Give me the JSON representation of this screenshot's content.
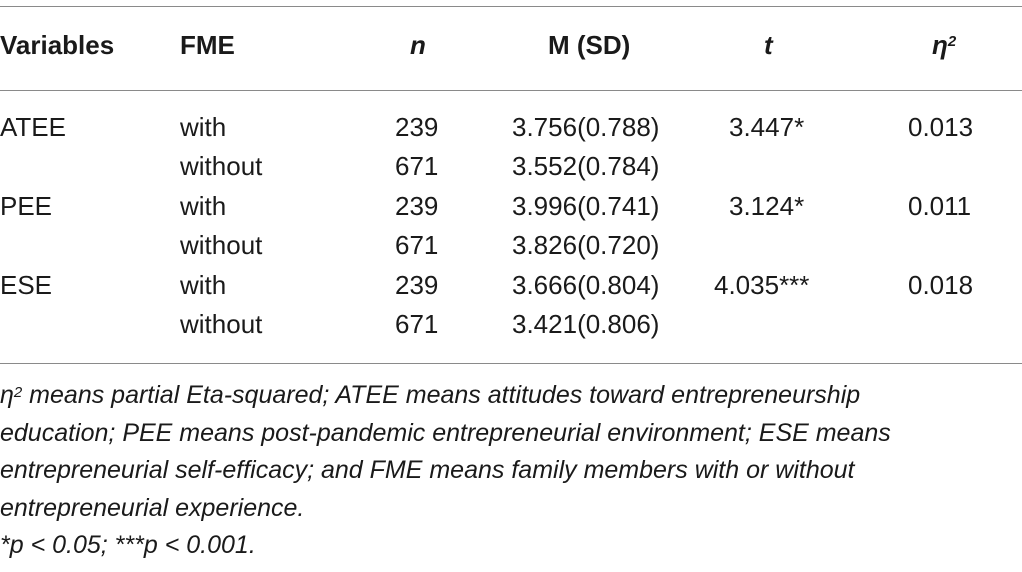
{
  "table": {
    "headers": {
      "variables": "Variables",
      "fme": "FME",
      "n": "n",
      "msd": "M (SD)",
      "t": "t",
      "eta_symbol": "η",
      "eta_sup": "2"
    },
    "rows": [
      {
        "variable": "ATEE",
        "fme": "with",
        "n": "239",
        "msd": "3.756(0.788)",
        "t": "3.447*",
        "eta": "0.013"
      },
      {
        "variable": "",
        "fme": "without",
        "n": "671",
        "msd": "3.552(0.784)",
        "t": "",
        "eta": ""
      },
      {
        "variable": "PEE",
        "fme": "with",
        "n": "239",
        "msd": "3.996(0.741)",
        "t": "3.124*",
        "eta": "0.011"
      },
      {
        "variable": "",
        "fme": "without",
        "n": "671",
        "msd": "3.826(0.720)",
        "t": "",
        "eta": ""
      },
      {
        "variable": "ESE",
        "fme": "with",
        "n": "239",
        "msd": "3.666(0.804)",
        "t": "4.035***",
        "eta": "0.018"
      },
      {
        "variable": "",
        "fme": "without",
        "n": "671",
        "msd": "3.421(0.806)",
        "t": "",
        "eta": ""
      }
    ]
  },
  "notes": {
    "eta_symbol": "η",
    "eta_sup": "2",
    "line1_rest": " means partial Eta-squared; ATEE means attitudes toward entrepreneurship",
    "line2": "education; PEE means post-pandemic entrepreneurial environment; ESE means",
    "line3": "entrepreneurial self-efficacy; and FME means family members with or without",
    "line4": "entrepreneurial experience.",
    "line5": "*p < 0.05; ***p < 0.001."
  }
}
